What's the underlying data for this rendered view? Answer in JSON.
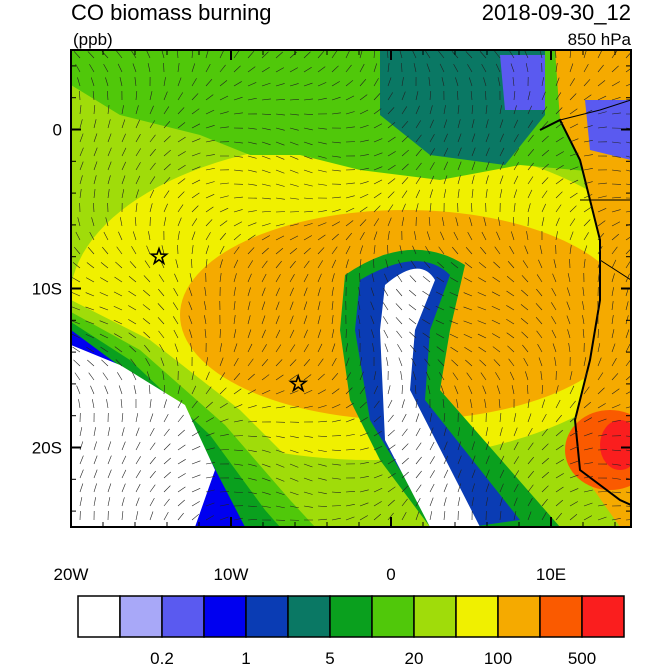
{
  "chart_data": {
    "type": "map",
    "title": "CO biomass burning",
    "units": "(ppb)",
    "time": "2018-09-30_12",
    "level": "850 hPa",
    "xlim": [
      -20,
      15
    ],
    "ylim": [
      -25,
      5
    ],
    "xticks": [
      {
        "value": -20,
        "label": "20W"
      },
      {
        "value": -10,
        "label": "10W"
      },
      0,
      {
        "value": 10,
        "label": "10E"
      }
    ],
    "yticks": [
      0,
      {
        "value": -10,
        "label": "10S"
      },
      {
        "value": -20,
        "label": "20S"
      }
    ],
    "markers": [
      {
        "lon": -14.5,
        "lat": -8
      },
      {
        "lon": -5.8,
        "lat": -16
      }
    ],
    "colorbar": {
      "colors": [
        "#ffffff",
        "#a8a8f8",
        "#5a5af0",
        "#0000f0",
        "#0a3cb4",
        "#0a7864",
        "#0aa01e",
        "#50c80a",
        "#a0dc0a",
        "#f0f000",
        "#f5aa00",
        "#fa5a00",
        "#fa1e1e"
      ],
      "labels": [
        0.2,
        1,
        5,
        20,
        100,
        500
      ]
    }
  }
}
